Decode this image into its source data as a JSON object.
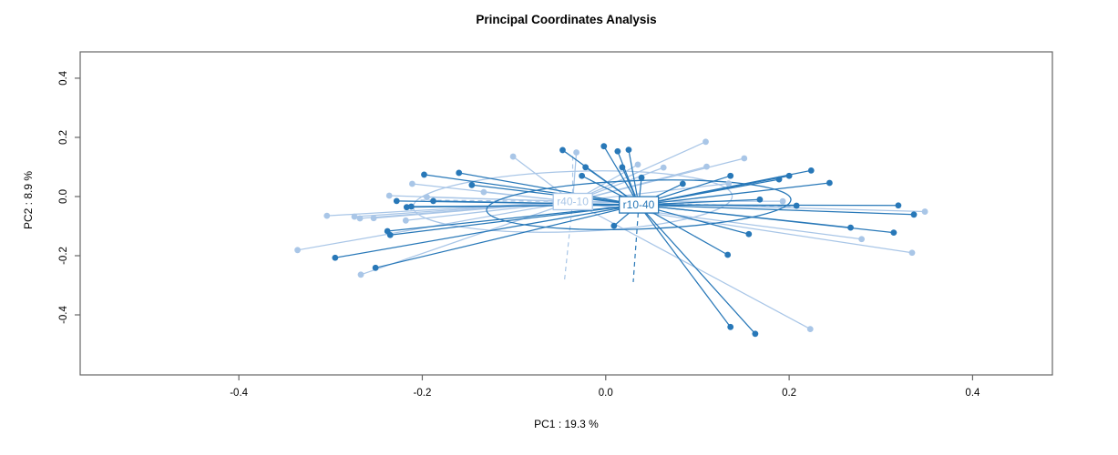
{
  "chart_data": {
    "type": "scatter",
    "title": "Principal Coordinates Analysis",
    "xlabel": "PC1 : 19.3 %",
    "ylabel": "PC2 : 8.9 %",
    "xlim": [
      -0.573,
      0.487
    ],
    "ylim": [
      -0.603,
      0.489
    ],
    "grid": false,
    "legend_position": "none",
    "frame_color": "#666666",
    "text_color": "#000000",
    "xticks": {
      "values": [
        -0.4,
        -0.2,
        0.0,
        0.2,
        0.4
      ],
      "labels": [
        "-0.4",
        "-0.2",
        "0.0",
        "0.2",
        "0.4"
      ]
    },
    "yticks": {
      "values": [
        -0.4,
        -0.2,
        0.0,
        0.2,
        0.4
      ],
      "labels": [
        "-0.4",
        "-0.2",
        "0.0",
        "0.2",
        "0.4"
      ]
    },
    "groups": [
      {
        "name": "r40-10",
        "color": "#a9c6e7",
        "centroid": {
          "x": -0.036,
          "y": -0.017
        },
        "ellipse": {
          "rx": 0.174,
          "ry": 0.102,
          "rotation_deg": -2
        },
        "dashed_rays": [
          [
            -0.205,
            -0.012
          ],
          [
            -0.036,
            0.148
          ],
          [
            -0.045,
            -0.285
          ],
          [
            0.204,
            -0.034
          ]
        ],
        "points": [
          [
            -0.211,
            0.043
          ],
          [
            -0.236,
            0.003
          ],
          [
            -0.195,
            -0.002
          ],
          [
            -0.304,
            -0.065
          ],
          [
            -0.274,
            -0.068
          ],
          [
            -0.268,
            -0.074
          ],
          [
            -0.253,
            -0.073
          ],
          [
            -0.218,
            -0.081
          ],
          [
            -0.336,
            -0.181
          ],
          [
            -0.267,
            -0.264
          ],
          [
            -0.101,
            0.135
          ],
          [
            -0.032,
            0.149
          ],
          [
            0.035,
            0.108
          ],
          [
            0.063,
            0.098
          ],
          [
            -0.133,
            0.015
          ],
          [
            0.109,
            0.185
          ],
          [
            0.151,
            0.129
          ],
          [
            0.11,
            0.101
          ],
          [
            0.134,
            0.044
          ],
          [
            0.193,
            -0.016
          ],
          [
            0.348,
            -0.051
          ],
          [
            0.279,
            -0.144
          ],
          [
            0.334,
            -0.19
          ],
          [
            0.223,
            -0.448
          ]
        ]
      },
      {
        "name": "r10-40",
        "color": "#2878b8",
        "centroid": {
          "x": 0.036,
          "y": -0.028
        },
        "ellipse": {
          "rx": 0.166,
          "ry": 0.082,
          "rotation_deg": -2
        },
        "dashed_rays": [
          [
            0.03,
            -0.289
          ]
        ],
        "points": [
          [
            -0.198,
            0.074
          ],
          [
            -0.228,
            -0.015
          ],
          [
            -0.217,
            -0.036
          ],
          [
            -0.212,
            -0.034
          ],
          [
            -0.188,
            -0.015
          ],
          [
            -0.238,
            -0.117
          ],
          [
            -0.235,
            -0.13
          ],
          [
            -0.295,
            -0.207
          ],
          [
            -0.251,
            -0.241
          ],
          [
            -0.16,
            0.08
          ],
          [
            -0.047,
            0.157
          ],
          [
            -0.022,
            0.099
          ],
          [
            -0.026,
            0.07
          ],
          [
            -0.002,
            0.17
          ],
          [
            0.013,
            0.153
          ],
          [
            0.025,
            0.158
          ],
          [
            0.018,
            0.099
          ],
          [
            0.039,
            0.064
          ],
          [
            0.084,
            0.043
          ],
          [
            -0.146,
            0.039
          ],
          [
            0.009,
            -0.099
          ],
          [
            0.136,
            0.07
          ],
          [
            0.189,
            0.058
          ],
          [
            0.2,
            0.07
          ],
          [
            0.224,
            0.088
          ],
          [
            0.244,
            0.046
          ],
          [
            0.168,
            -0.01
          ],
          [
            0.208,
            -0.031
          ],
          [
            0.319,
            -0.03
          ],
          [
            0.336,
            -0.061
          ],
          [
            0.267,
            -0.105
          ],
          [
            0.314,
            -0.122
          ],
          [
            0.156,
            -0.127
          ],
          [
            0.133,
            -0.197
          ],
          [
            0.136,
            -0.441
          ],
          [
            0.163,
            -0.464
          ]
        ]
      }
    ]
  }
}
